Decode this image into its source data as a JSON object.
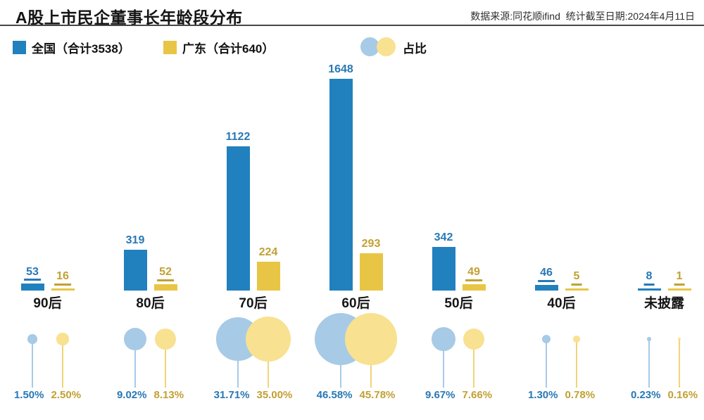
{
  "header": {
    "title": "A股上市民企董事长年龄段分布",
    "source": "数据来源:同花顺ifind  统计截至日期:2024年4月11日"
  },
  "legend": {
    "national": "全国（合计3538）",
    "guangdong": "广东（合计640）",
    "ratio": "占比"
  },
  "colors": {
    "national_bar": "#2180BE",
    "national_text": "#2878B5",
    "national_bubble": "#A7CAE6",
    "national_stem": "#A7CAE6",
    "guangdong_bar": "#E8C545",
    "guangdong_text": "#C2A033",
    "guangdong_bubble": "#F8E190",
    "guangdong_stem": "#F0D478",
    "divider": "#474747"
  },
  "chart_data": {
    "type": "bar",
    "title": "A股上市民企董事长年龄段分布",
    "categories": [
      "90后",
      "80后",
      "70后",
      "60后",
      "50后",
      "40后",
      "未披露"
    ],
    "series": [
      {
        "name": "全国（合计3538）",
        "total": 3538,
        "color": "#2180BE",
        "label_color": "#2878B5",
        "bubble_color": "#A7CAE6",
        "stem_color": "#A7CAE6",
        "values": [
          53,
          319,
          1122,
          1648,
          342,
          46,
          8
        ],
        "pct": [
          1.5,
          9.02,
          31.71,
          46.58,
          9.67,
          1.3,
          0.23
        ]
      },
      {
        "name": "广东（合计640）",
        "total": 640,
        "color": "#E8C545",
        "label_color": "#C2A033",
        "bubble_color": "#F8E190",
        "stem_color": "#F0D478",
        "values": [
          16,
          52,
          224,
          293,
          49,
          5,
          1
        ],
        "pct": [
          2.5,
          8.13,
          35.0,
          45.78,
          7.66,
          0.78,
          0.16
        ]
      }
    ],
    "bubble_legend_label": "占比",
    "pct_unit": "%",
    "ylim": [
      0,
      1648
    ],
    "grid": false,
    "legend_position": "top"
  }
}
